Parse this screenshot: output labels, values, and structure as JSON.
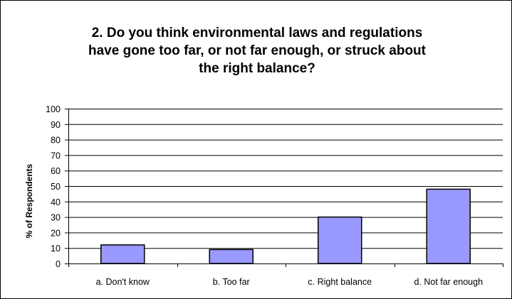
{
  "chart_data": {
    "type": "bar",
    "title_lines": [
      "2. Do you think environmental laws and regulations",
      "have gone too far, or not far enough, or struck about",
      "the right balance?"
    ],
    "xlabel": "",
    "ylabel": "% of Respondents",
    "categories": [
      "a. Don't know",
      "b. Too far",
      "c. Right balance",
      "d. Not far enough"
    ],
    "values": [
      12,
      9,
      30,
      48
    ],
    "ylim": [
      0,
      100
    ],
    "yticks": [
      0,
      10,
      20,
      30,
      40,
      50,
      60,
      70,
      80,
      90,
      100
    ],
    "grid": true,
    "legend": "none",
    "bar_color": "#9999ff",
    "bar_edge_color": "#000000"
  }
}
